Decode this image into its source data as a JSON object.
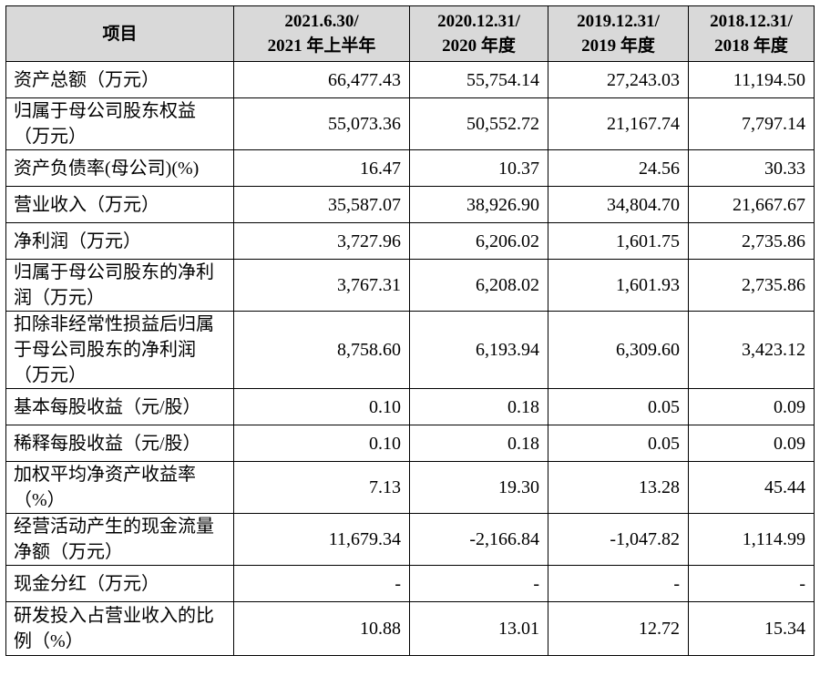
{
  "table": {
    "headers": [
      [
        "项目"
      ],
      [
        "2021.6.30/",
        "2021 年上半年"
      ],
      [
        "2020.12.31/",
        "2020 年度"
      ],
      [
        "2019.12.31/",
        "2019 年度"
      ],
      [
        "2018.12.31/",
        "2018 年度"
      ]
    ],
    "rows": [
      {
        "label": [
          "资产总额（万元）"
        ],
        "values": [
          "66,477.43",
          "55,754.14",
          "27,243.03",
          "11,194.50"
        ]
      },
      {
        "label": [
          "归属于母公司股东权益",
          "（万元）"
        ],
        "values": [
          "55,073.36",
          "50,552.72",
          "21,167.74",
          "7,797.14"
        ]
      },
      {
        "label": [
          "资产负债率(母公司)(%)"
        ],
        "values": [
          "16.47",
          "10.37",
          "24.56",
          "30.33"
        ]
      },
      {
        "label": [
          "营业收入（万元）"
        ],
        "values": [
          "35,587.07",
          "38,926.90",
          "34,804.70",
          "21,667.67"
        ]
      },
      {
        "label": [
          "净利润（万元）"
        ],
        "values": [
          "3,727.96",
          "6,206.02",
          "1,601.75",
          "2,735.86"
        ]
      },
      {
        "label": [
          "归属于母公司股东的净利",
          "润（万元）"
        ],
        "values": [
          "3,767.31",
          "6,208.02",
          "1,601.93",
          "2,735.86"
        ]
      },
      {
        "label": [
          "扣除非经常性损益后归属",
          "于母公司股东的净利润",
          "（万元）"
        ],
        "values": [
          "8,758.60",
          "6,193.94",
          "6,309.60",
          "3,423.12"
        ]
      },
      {
        "label": [
          "基本每股收益（元/股）"
        ],
        "values": [
          "0.10",
          "0.18",
          "0.05",
          "0.09"
        ]
      },
      {
        "label": [
          "稀释每股收益（元/股）"
        ],
        "values": [
          "0.10",
          "0.18",
          "0.05",
          "0.09"
        ]
      },
      {
        "label": [
          "加权平均净资产收益率",
          "（%）"
        ],
        "values": [
          "7.13",
          "19.30",
          "13.28",
          "45.44"
        ]
      },
      {
        "label": [
          "经营活动产生的现金流量",
          "净额（万元）"
        ],
        "values": [
          "11,679.34",
          "-2,166.84",
          "-1,047.82",
          "1,114.99"
        ]
      },
      {
        "label": [
          "现金分红（万元）"
        ],
        "values": [
          "-",
          "-",
          "-",
          "-"
        ]
      },
      {
        "label": [
          "研发投入占营业收入的比",
          "例（%）"
        ],
        "values": [
          "10.88",
          "13.01",
          "12.72",
          "15.34"
        ]
      }
    ]
  }
}
